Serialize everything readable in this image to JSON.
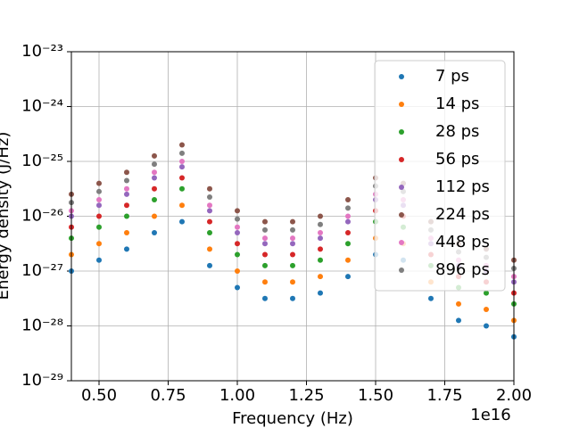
{
  "chart_data": {
    "type": "scatter",
    "x_label": "Frequency (Hz)",
    "y_label": "Energy density (J/Hz)",
    "x_offset_label": "1e16",
    "x": [
      4000000000000000.0,
      5000000000000000.0,
      6000000000000000.0,
      7000000000000000.0,
      8000000000000000.0,
      9000000000000000.0,
      1e+16,
      1.1e+16,
      1.2e+16,
      1.3e+16,
      1.4e+16,
      1.5e+16,
      1.6e+16,
      1.7e+16,
      1.8e+16,
      1.9e+16,
      2e+16
    ],
    "series": [
      {
        "name": "7 ps",
        "color": "#1f77b4",
        "values": [
          1e-27,
          1.58e-27,
          2.51e-27,
          5.01e-27,
          7.94e-27,
          1.26e-27,
          5.01e-28,
          3.16e-28,
          3.16e-28,
          3.98e-28,
          7.94e-28,
          2e-27,
          1.58e-27,
          3.16e-28,
          1.26e-28,
          1e-28,
          6.31e-29
        ]
      },
      {
        "name": "14 ps",
        "color": "#ff7f0e",
        "values": [
          2e-27,
          3.16e-27,
          5.01e-27,
          1e-26,
          1.58e-26,
          2.51e-27,
          1e-27,
          6.31e-28,
          6.31e-28,
          7.94e-28,
          1.58e-27,
          3.98e-27,
          3.16e-27,
          6.31e-28,
          2.51e-28,
          2e-28,
          1.26e-28
        ]
      },
      {
        "name": "28 ps",
        "color": "#2ca02c",
        "values": [
          3.98e-27,
          6.31e-27,
          1e-26,
          2e-26,
          3.16e-26,
          5.01e-27,
          2e-27,
          1.26e-27,
          1.26e-27,
          1.58e-27,
          3.16e-27,
          7.94e-27,
          6.31e-27,
          1.26e-27,
          5.01e-28,
          3.98e-28,
          2.51e-28
        ]
      },
      {
        "name": "56 ps",
        "color": "#d62728",
        "values": [
          6.31e-27,
          1e-26,
          1.58e-26,
          3.16e-26,
          5.01e-26,
          7.94e-27,
          3.16e-27,
          2e-27,
          2e-27,
          2.51e-27,
          5.01e-27,
          1.26e-26,
          1e-26,
          2e-27,
          7.94e-28,
          6.31e-28,
          3.98e-28
        ]
      },
      {
        "name": "112 ps",
        "color": "#9467bd",
        "values": [
          1e-26,
          1.58e-26,
          2.51e-26,
          5.01e-26,
          7.94e-26,
          1.26e-26,
          5.01e-27,
          3.16e-27,
          3.16e-27,
          3.98e-27,
          7.94e-27,
          2e-26,
          1.58e-26,
          3.16e-27,
          1.26e-27,
          1e-27,
          6.31e-28
        ]
      },
      {
        "name": "224 ps",
        "color": "#8c564b",
        "values": [
          2.51e-26,
          3.98e-26,
          6.31e-26,
          1.26e-25,
          2e-25,
          3.16e-26,
          1.26e-26,
          7.94e-27,
          7.94e-27,
          1e-26,
          2e-26,
          5.01e-26,
          3.98e-26,
          7.94e-27,
          3.16e-27,
          2.51e-27,
          1.58e-27
        ]
      },
      {
        "name": "448 ps",
        "color": "#e377c2",
        "values": [
          1.26e-26,
          2e-26,
          3.16e-26,
          6.31e-26,
          1e-25,
          1.58e-26,
          6.31e-27,
          3.98e-27,
          3.98e-27,
          5.01e-27,
          1e-26,
          2.51e-26,
          2e-26,
          3.98e-27,
          1.58e-27,
          1.26e-27,
          7.94e-28
        ]
      },
      {
        "name": "896 ps",
        "color": "#7f7f7f",
        "values": [
          1.78e-26,
          2.82e-26,
          4.47e-26,
          8.91e-26,
          1.41e-25,
          2.24e-26,
          8.91e-27,
          5.62e-27,
          5.62e-27,
          7.08e-27,
          1.41e-26,
          3.55e-26,
          2.82e-26,
          5.62e-27,
          2.24e-27,
          1.78e-27,
          1.12e-27
        ]
      }
    ],
    "xlim": [
      4000000000000000.0,
      2e+16
    ],
    "xticks": [
      {
        "value": 5000000000000000.0,
        "label": "0.50"
      },
      {
        "value": 7500000000000000.0,
        "label": "0.75"
      },
      {
        "value": 1e+16,
        "label": "1.00"
      },
      {
        "value": 1.25e+16,
        "label": "1.25"
      },
      {
        "value": 1.5e+16,
        "label": "1.50"
      },
      {
        "value": 1.75e+16,
        "label": "1.75"
      },
      {
        "value": 2e+16,
        "label": "2.00"
      }
    ],
    "ylim": [
      1e-29,
      1e-23
    ],
    "yticks": [
      {
        "value": 1e-29,
        "label": "10⁻²⁹"
      },
      {
        "value": 1e-28,
        "label": "10⁻²⁸"
      },
      {
        "value": 1e-27,
        "label": "10⁻²⁷"
      },
      {
        "value": 1e-26,
        "label": "10⁻²⁶"
      },
      {
        "value": 1e-25,
        "label": "10⁻²⁵"
      },
      {
        "value": 1e-24,
        "label": "10⁻²⁴"
      },
      {
        "value": 1e-23,
        "label": "10⁻²³"
      }
    ],
    "y_log": true,
    "grid": true,
    "legend": "upper right"
  }
}
